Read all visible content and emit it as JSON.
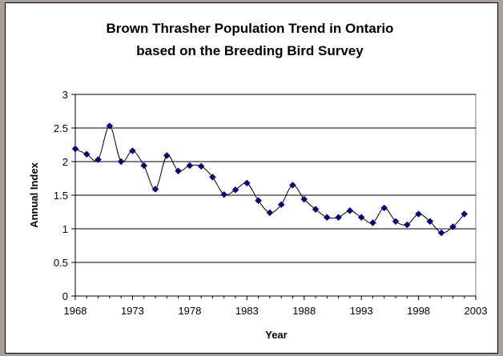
{
  "chart_data": {
    "type": "line",
    "title_lines": [
      "Brown Thrasher Population Trend in Ontario",
      "based on the Breeding Bird Survey"
    ],
    "xlabel": "Year",
    "ylabel": "Annual Index",
    "xlim": [
      1968,
      2003
    ],
    "ylim": [
      0,
      3
    ],
    "x_ticks": [
      "1968",
      "1973",
      "1978",
      "1983",
      "1988",
      "1993",
      "1998",
      "2003"
    ],
    "y_ticks": [
      "0",
      "0.5",
      "1",
      "1.5",
      "2",
      "2.5",
      "3"
    ],
    "grid": true,
    "legend": "none",
    "smoothed": true,
    "series": [
      {
        "color": "#000080",
        "x": [
          1968,
          1969,
          1970,
          1971,
          1972,
          1973,
          1974,
          1975,
          1976,
          1977,
          1978,
          1979,
          1980,
          1981,
          1982,
          1983,
          1984,
          1985,
          1986,
          1987,
          1988,
          1989,
          1990,
          1991,
          1992,
          1993,
          1994,
          1995,
          1996,
          1997,
          1998,
          1999,
          2000,
          2001,
          2002
        ],
        "y": [
          2.19,
          2.11,
          2.03,
          2.53,
          2.0,
          2.16,
          1.94,
          1.59,
          2.09,
          1.86,
          1.94,
          1.93,
          1.77,
          1.51,
          1.58,
          1.68,
          1.42,
          1.24,
          1.36,
          1.65,
          1.44,
          1.29,
          1.17,
          1.17,
          1.27,
          1.17,
          1.09,
          1.31,
          1.11,
          1.06,
          1.22,
          1.11,
          0.94,
          1.03,
          1.22
        ]
      }
    ]
  }
}
